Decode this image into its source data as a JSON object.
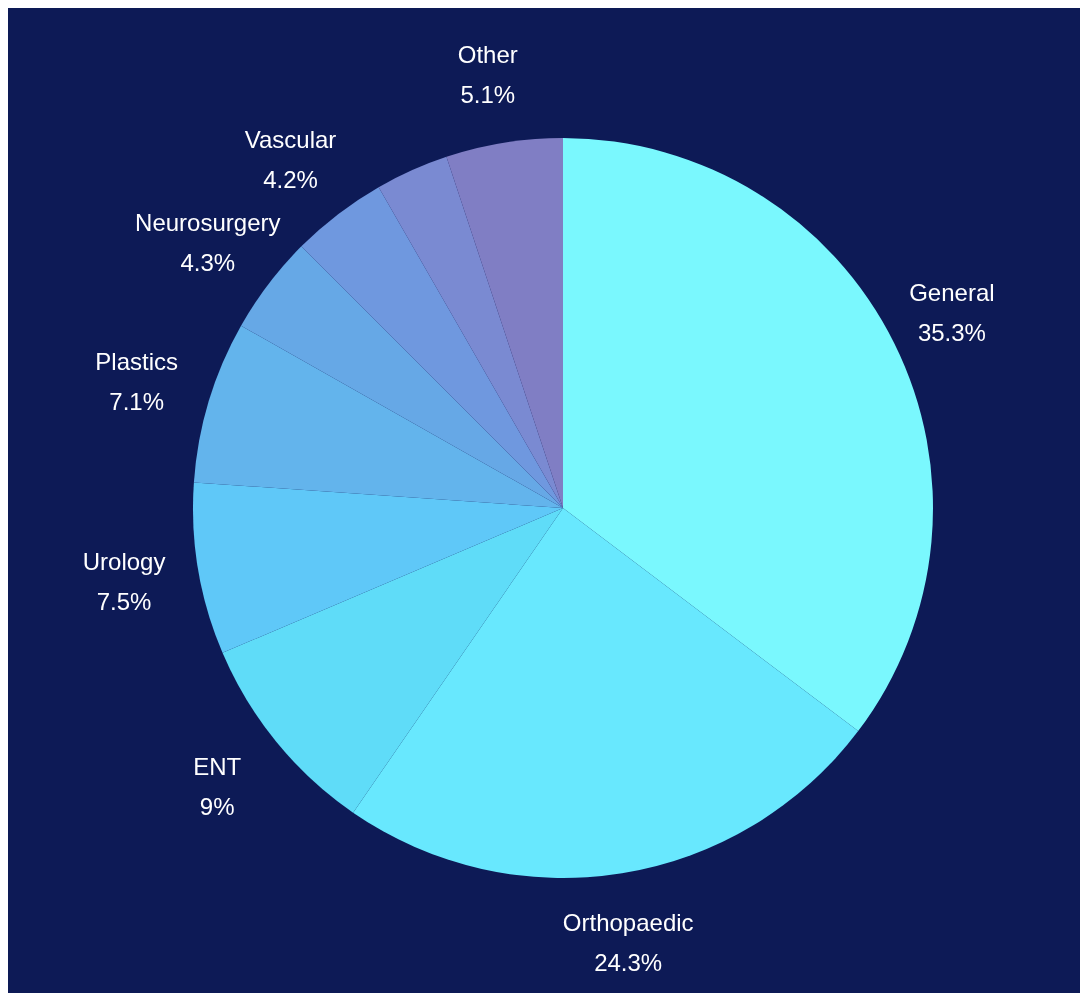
{
  "chart_data": {
    "type": "pie",
    "categories": [
      "General",
      "Orthopaedic",
      "ENT",
      "Urology",
      "Plastics",
      "Neurosurgery",
      "Vascular",
      null,
      "Other"
    ],
    "values": [
      35.3,
      24.3,
      9,
      7.5,
      7.1,
      4.3,
      4.2,
      3.2,
      5.1
    ],
    "value_labels": [
      "35.3%",
      "24.3%",
      "9%",
      "7.5%",
      "7.1%",
      "4.3%",
      "4.2%",
      null,
      "5.1%"
    ],
    "colors": [
      "#7af8fe",
      "#68e8fe",
      "#5fdcf8",
      "#5fc8f8",
      "#63b4ec",
      "#66a8e6",
      "#6f98df",
      "#7a8ad2",
      "#807ec4"
    ]
  }
}
